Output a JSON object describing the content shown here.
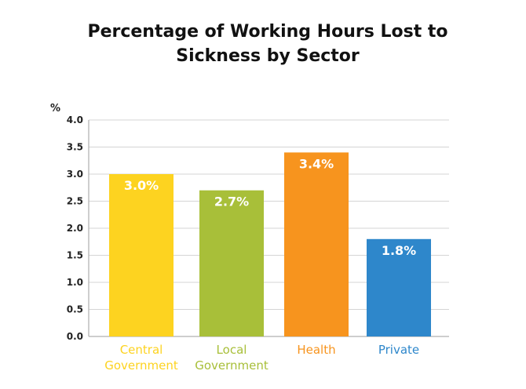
{
  "chart_data": {
    "type": "bar",
    "title": [
      "Percentage of Working Hours Lost to",
      "Sickness by Sector"
    ],
    "ylabel": "%",
    "ylim": [
      0,
      4.0
    ],
    "yticks": [
      "0.0",
      "0.5",
      "1.0",
      "1.5",
      "2.0",
      "2.5",
      "3.0",
      "3.5",
      "4.0"
    ],
    "grid": true,
    "categories": [
      [
        "Central",
        "Government"
      ],
      [
        "Local",
        "Government"
      ],
      [
        "Health"
      ],
      [
        "Private"
      ]
    ],
    "values": [
      3.0,
      2.7,
      3.4,
      1.8
    ],
    "value_labels": [
      "3.0%",
      "2.7%",
      "3.4%",
      "1.8%"
    ],
    "colors": [
      "#FDD320",
      "#A8BF39",
      "#F7941E",
      "#2E87CB"
    ]
  }
}
